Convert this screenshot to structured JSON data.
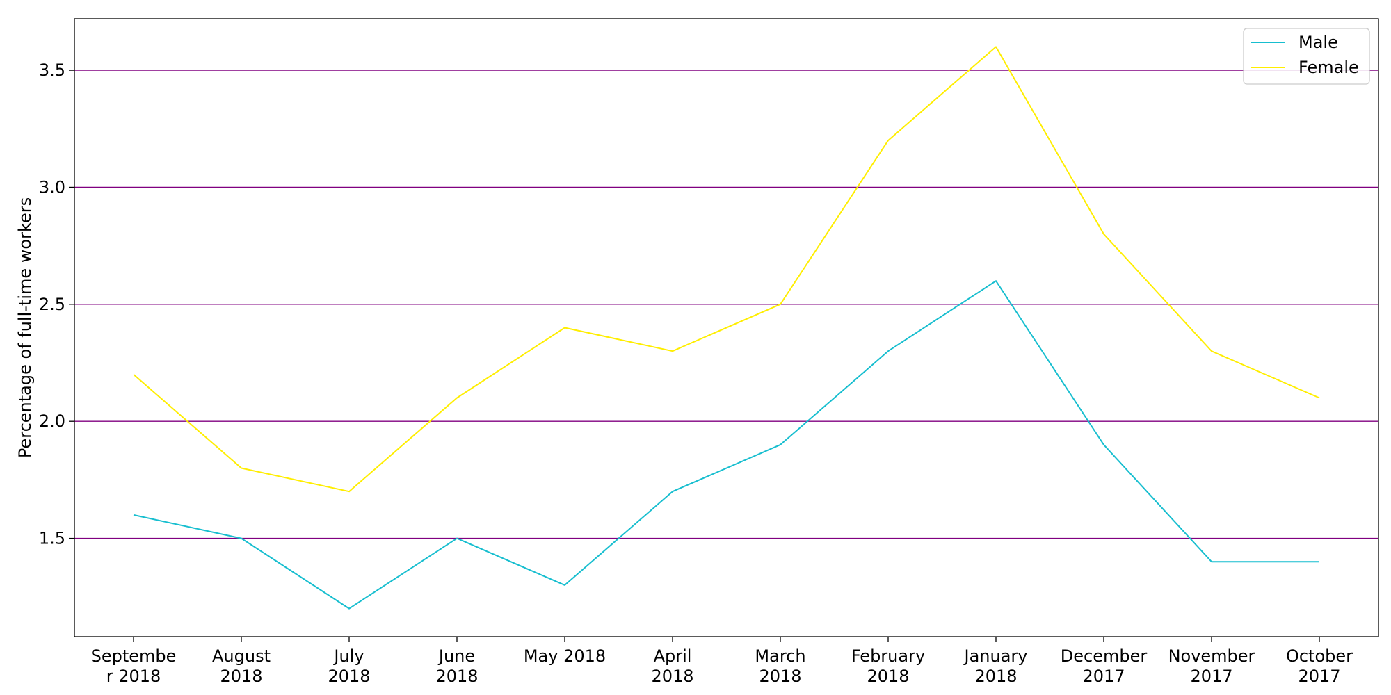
{
  "chart_data": {
    "type": "line",
    "title": "",
    "xlabel": "",
    "ylabel": "Percentage of full-time workers",
    "categories": [
      [
        "Septembe",
        "r 2018"
      ],
      [
        "August",
        "2018"
      ],
      [
        "July",
        "2018"
      ],
      [
        "June",
        "2018"
      ],
      [
        "May 2018"
      ],
      [
        "April",
        "2018"
      ],
      [
        "March",
        "2018"
      ],
      [
        "February",
        "2018"
      ],
      [
        "January",
        "2018"
      ],
      [
        "December",
        "2017"
      ],
      [
        "November",
        "2017"
      ],
      [
        "October",
        "2017"
      ]
    ],
    "series": [
      {
        "name": "Male",
        "color": "#17becf",
        "values": [
          1.6,
          1.5,
          1.2,
          1.5,
          1.3,
          1.7,
          1.9,
          2.3,
          2.6,
          1.9,
          1.4,
          1.4
        ]
      },
      {
        "name": "Female",
        "color": "#ffee00",
        "values": [
          2.2,
          1.8,
          1.7,
          2.1,
          2.4,
          2.3,
          2.5,
          3.2,
          3.6,
          2.8,
          2.3,
          2.1
        ]
      }
    ],
    "ylim": [
      1.08,
      3.72
    ],
    "yticks": [
      1.5,
      2.0,
      2.5,
      3.0,
      3.5
    ],
    "ytick_labels": [
      "1.5",
      "2.0",
      "2.5",
      "3.0",
      "3.5"
    ],
    "grid": "horizontal",
    "grid_color": "#800080",
    "legend_position": "top-right"
  }
}
